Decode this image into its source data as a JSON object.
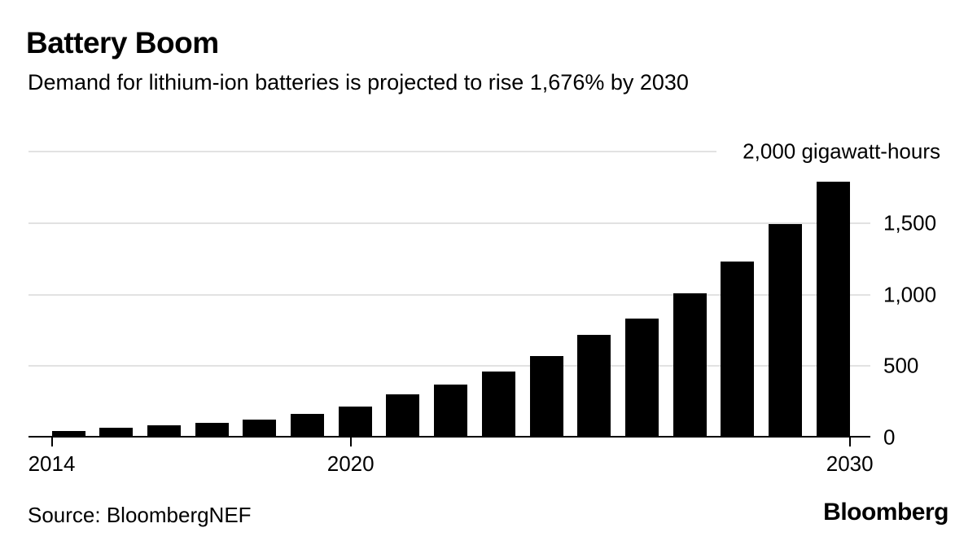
{
  "chart_data": {
    "type": "bar",
    "title": "Battery Boom",
    "subtitle": "Demand for lithium-ion batteries is projected to rise 1,676% by 2030",
    "unit": "gigawatt-hours",
    "categories": [
      "2014",
      "2015",
      "2016",
      "2017",
      "2018",
      "2019",
      "2020",
      "2021",
      "2022",
      "2023",
      "2024",
      "2025",
      "2026",
      "2027",
      "2028",
      "2029",
      "2030"
    ],
    "values": [
      48,
      71,
      85,
      103,
      126,
      168,
      218,
      300,
      372,
      460,
      572,
      720,
      830,
      1010,
      1230,
      1495,
      1790
    ],
    "ylim": [
      0,
      2000
    ],
    "y_ticks": [
      {
        "value": 1500,
        "label": "1,500"
      },
      {
        "value": 1000,
        "label": "1,000"
      },
      {
        "value": 500,
        "label": "500"
      },
      {
        "value": 0,
        "label": "0"
      }
    ],
    "y_max_label": "2,000 gigawatt-hours",
    "x_tick_labels": [
      "2014",
      "2020",
      "2030"
    ],
    "grid": true,
    "legend": false,
    "bar_color": "#000000",
    "gridline_color": "#e2e2e2",
    "text_color": "#000000",
    "background_color": "#ffffff"
  },
  "footer": {
    "source": "Source: BloombergNEF",
    "logo": "Bloomberg"
  }
}
